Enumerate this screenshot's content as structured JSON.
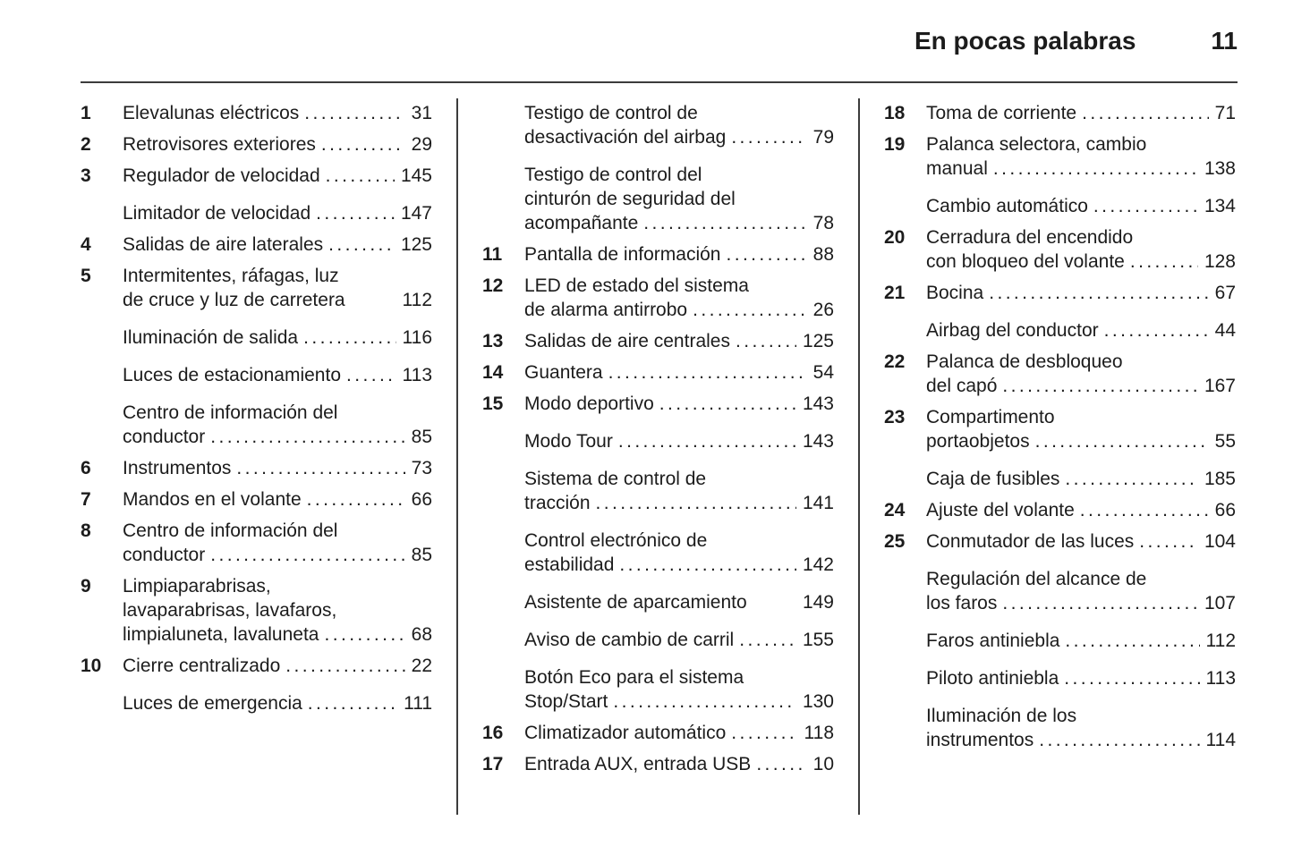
{
  "header": {
    "title": "En pocas palabras",
    "page_number": "11"
  },
  "leader_dots": "..........................................................................",
  "colors": {
    "background": "#ffffff",
    "text": "#1c1c1c",
    "rule": "#3c3c3c"
  },
  "columns": [
    {
      "entries": [
        {
          "num": "1",
          "lines": [
            "Elevalunas eléctricos"
          ],
          "page": "31"
        },
        {
          "num": "2",
          "lines": [
            "Retrovisores exteriores"
          ],
          "page": "29"
        },
        {
          "num": "3",
          "lines": [
            "Regulador de velocidad"
          ],
          "page": "145"
        },
        {
          "num": "",
          "lines": [
            "Limitador de velocidad"
          ],
          "page": "147"
        },
        {
          "num": "4",
          "lines": [
            "Salidas de aire laterales"
          ],
          "page": "125"
        },
        {
          "num": "5",
          "lines": [
            "Intermitentes, ráfagas, luz",
            "de cruce y luz de carretera"
          ],
          "page": "112",
          "dots": false
        },
        {
          "num": "",
          "lines": [
            "Iluminación de salida"
          ],
          "page": "116"
        },
        {
          "num": "",
          "lines": [
            "Luces de estacionamiento"
          ],
          "page": "113"
        },
        {
          "num": "",
          "lines": [
            "Centro de información del",
            "conductor"
          ],
          "page": "85"
        },
        {
          "num": "6",
          "lines": [
            "Instrumentos"
          ],
          "page": "73"
        },
        {
          "num": "7",
          "lines": [
            "Mandos en el volante"
          ],
          "page": "66"
        },
        {
          "num": "8",
          "lines": [
            "Centro de información del",
            "conductor"
          ],
          "page": "85"
        },
        {
          "num": "9",
          "lines": [
            "Limpiaparabrisas,",
            "lavaparabrisas, lavafaros,",
            "limpialuneta, lavaluneta"
          ],
          "page": "68"
        },
        {
          "num": "10",
          "lines": [
            "Cierre centralizado"
          ],
          "page": "22"
        },
        {
          "num": "",
          "lines": [
            "Luces de emergencia"
          ],
          "page": "111"
        }
      ]
    },
    {
      "entries": [
        {
          "num": "",
          "lines": [
            "Testigo de control de",
            "desactivación del airbag"
          ],
          "page": "79"
        },
        {
          "num": "",
          "lines": [
            "Testigo de control del",
            "cinturón de seguridad del",
            "acompañante"
          ],
          "page": "78"
        },
        {
          "num": "11",
          "lines": [
            "Pantalla de información"
          ],
          "page": "88"
        },
        {
          "num": "12",
          "lines": [
            "LED de estado del sistema",
            "de alarma antirrobo"
          ],
          "page": "26"
        },
        {
          "num": "13",
          "lines": [
            "Salidas de aire centrales"
          ],
          "page": "125"
        },
        {
          "num": "14",
          "lines": [
            "Guantera"
          ],
          "page": "54"
        },
        {
          "num": "15",
          "lines": [
            "Modo deportivo"
          ],
          "page": "143"
        },
        {
          "num": "",
          "lines": [
            "Modo Tour"
          ],
          "page": "143"
        },
        {
          "num": "",
          "lines": [
            "Sistema de control de",
            "tracción"
          ],
          "page": "141"
        },
        {
          "num": "",
          "lines": [
            "Control electrónico de",
            "estabilidad"
          ],
          "page": "142"
        },
        {
          "num": "",
          "lines": [
            "Asistente de aparcamiento"
          ],
          "page": "149",
          "dots": false
        },
        {
          "num": "",
          "lines": [
            "Aviso de cambio de carril"
          ],
          "page": "155"
        },
        {
          "num": "",
          "lines": [
            "Botón Eco para el sistema",
            "Stop/Start"
          ],
          "page": "130"
        },
        {
          "num": "16",
          "lines": [
            "Climatizador automático"
          ],
          "page": "118"
        },
        {
          "num": "17",
          "lines": [
            "Entrada AUX, entrada USB"
          ],
          "page": "10"
        }
      ]
    },
    {
      "entries": [
        {
          "num": "18",
          "lines": [
            "Toma de corriente"
          ],
          "page": "71"
        },
        {
          "num": "19",
          "lines": [
            "Palanca selectora, cambio",
            "manual"
          ],
          "page": "138"
        },
        {
          "num": "",
          "lines": [
            "Cambio automático"
          ],
          "page": "134"
        },
        {
          "num": "20",
          "lines": [
            "Cerradura del encendido",
            "con bloqueo del volante"
          ],
          "page": "128"
        },
        {
          "num": "21",
          "lines": [
            "Bocina"
          ],
          "page": "67"
        },
        {
          "num": "",
          "lines": [
            "Airbag del conductor"
          ],
          "page": "44"
        },
        {
          "num": "22",
          "lines": [
            "Palanca de desbloqueo",
            "del capó"
          ],
          "page": "167"
        },
        {
          "num": "23",
          "lines": [
            "Compartimento",
            "portaobjetos"
          ],
          "page": "55"
        },
        {
          "num": "",
          "lines": [
            "Caja de fusibles"
          ],
          "page": "185"
        },
        {
          "num": "24",
          "lines": [
            "Ajuste del volante"
          ],
          "page": "66"
        },
        {
          "num": "25",
          "lines": [
            "Conmutador de las luces"
          ],
          "page": "104"
        },
        {
          "num": "",
          "lines": [
            "Regulación del alcance de",
            "los faros"
          ],
          "page": "107"
        },
        {
          "num": "",
          "lines": [
            "Faros antiniebla"
          ],
          "page": "112"
        },
        {
          "num": "",
          "lines": [
            "Piloto antiniebla"
          ],
          "page": "113"
        },
        {
          "num": "",
          "lines": [
            "Iluminación de los",
            "instrumentos"
          ],
          "page": "114"
        }
      ]
    }
  ]
}
